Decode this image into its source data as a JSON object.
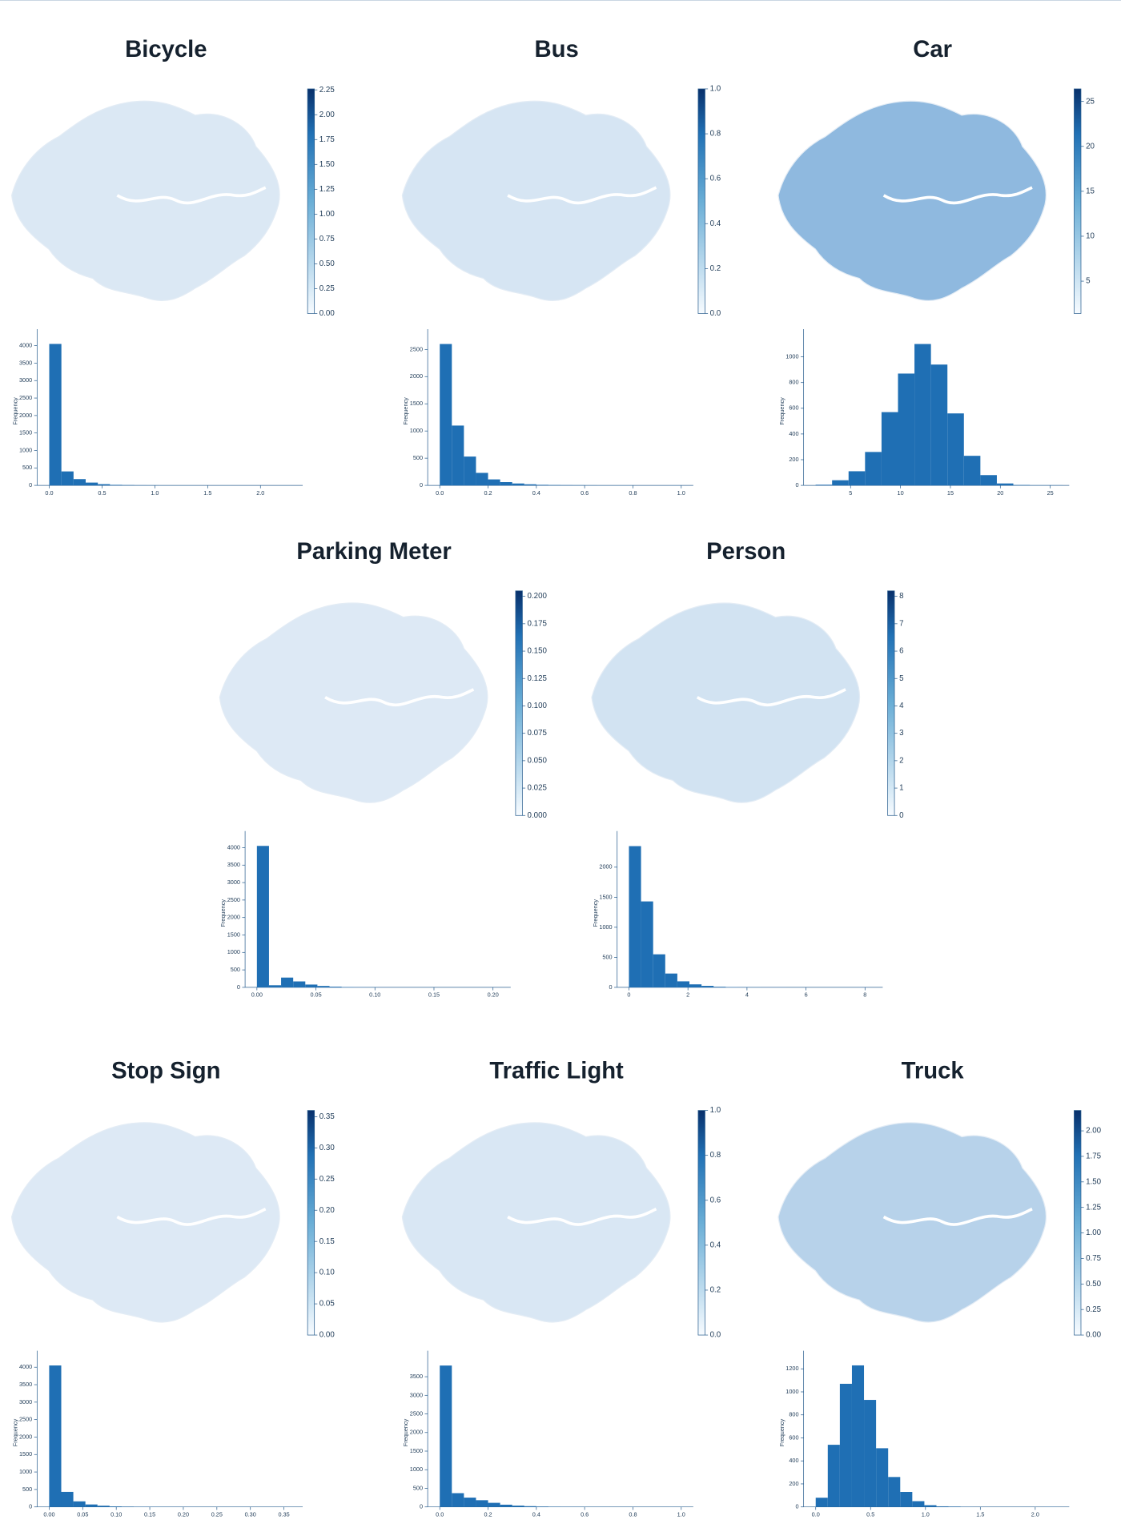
{
  "chart_data": [
    {
      "type": "histogram",
      "title": "Bicycle",
      "ylabel": "Frequency",
      "color": "#1f6fb4",
      "map_color": "#dbe8f4",
      "bins": [
        0,
        0.115,
        0.23,
        0.345,
        0.46,
        0.575,
        0.69,
        0.805,
        0.92,
        1.035,
        1.15,
        1.265,
        1.38,
        1.495,
        1.61,
        1.725,
        1.84,
        1.955,
        2.07,
        2.185,
        2.3
      ],
      "values": [
        4050,
        400,
        180,
        80,
        35,
        15,
        8,
        4,
        3,
        2,
        1,
        1,
        0,
        0,
        1,
        0,
        0,
        0,
        0,
        1
      ],
      "xlim": [
        -0.115,
        2.4
      ],
      "xticks": [
        {
          "value": 0,
          "label": "0.0"
        },
        0.5,
        {
          "value": 1,
          "label": "1.0"
        },
        1.5,
        {
          "value": 2,
          "label": "2.0"
        }
      ],
      "ylim": [
        0,
        4250
      ],
      "yticks": [
        0,
        500,
        1000,
        1500,
        2000,
        2500,
        3000,
        3500,
        4000
      ],
      "colorbar": {
        "lim": [
          0,
          2.26
        ],
        "ticks": [
          {
            "value": 0,
            "label": "0.00"
          },
          0.25,
          {
            "value": 0.5,
            "label": "0.50"
          },
          0.75,
          {
            "value": 1,
            "label": "1.00"
          },
          1.25,
          {
            "value": 1.5,
            "label": "1.50"
          },
          1.75,
          {
            "value": 2,
            "label": "2.00"
          },
          2.25
        ]
      }
    },
    {
      "type": "histogram",
      "title": "Bus",
      "ylabel": "Frequency",
      "color": "#1f6fb4",
      "map_color": "#d6e5f3",
      "bins": [
        0,
        0.05,
        0.1,
        0.15,
        0.2,
        0.25,
        0.3,
        0.35,
        0.4,
        0.45,
        0.5,
        0.55,
        0.6,
        0.65,
        0.7,
        0.75,
        0.8,
        0.85,
        0.9,
        0.95,
        1.0
      ],
      "values": [
        2600,
        1100,
        530,
        230,
        110,
        60,
        35,
        20,
        10,
        6,
        4,
        3,
        2,
        1,
        1,
        1,
        0,
        0,
        0,
        1
      ],
      "xlim": [
        -0.05,
        1.05
      ],
      "xticks": [
        {
          "value": 0,
          "label": "0.0"
        },
        0.2,
        0.4,
        0.6,
        0.8,
        {
          "value": 1,
          "label": "1.0"
        }
      ],
      "ylim": [
        0,
        2730
      ],
      "yticks": [
        0,
        500,
        1000,
        1500,
        2000,
        2500
      ],
      "colorbar": {
        "lim": [
          0,
          1.0
        ],
        "ticks": [
          {
            "value": 0,
            "label": "0.0"
          },
          0.2,
          0.4,
          0.6,
          0.8,
          {
            "value": 1,
            "label": "1.0"
          }
        ]
      }
    },
    {
      "type": "histogram",
      "title": "Car",
      "ylabel": "Frequency",
      "color": "#1f6fb4",
      "map_color": "#8fb9df",
      "bins": [
        1.5,
        3.15,
        4.8,
        6.45,
        8.1,
        9.75,
        11.4,
        13.05,
        14.7,
        16.35,
        18,
        19.65,
        21.3,
        22.95,
        24.6,
        26.25
      ],
      "values": [
        5,
        40,
        110,
        260,
        570,
        870,
        1100,
        940,
        560,
        230,
        80,
        15,
        3,
        1,
        1
      ],
      "xlim": [
        0.3,
        26.9
      ],
      "xticks": [
        5,
        10,
        15,
        20,
        25
      ],
      "ylim": [
        0,
        1155
      ],
      "yticks": [
        0,
        200,
        400,
        600,
        800,
        1000
      ],
      "colorbar": {
        "lim": [
          1.4,
          26.4
        ],
        "ticks": [
          5,
          10,
          15,
          20,
          25
        ]
      }
    },
    {
      "type": "histogram",
      "title": "Parking Meter",
      "ylabel": "Frequency",
      "color": "#1f6fb4",
      "map_color": "#dde9f5",
      "bins": [
        0,
        0.01025,
        0.0205,
        0.03075,
        0.041,
        0.05125,
        0.0615,
        0.07175,
        0.082,
        0.09225,
        0.1025,
        0.11275,
        0.123,
        0.13325,
        0.1435,
        0.15375,
        0.164,
        0.17425,
        0.1845,
        0.19475,
        0.205
      ],
      "values": [
        4050,
        60,
        280,
        170,
        80,
        40,
        20,
        10,
        5,
        3,
        2,
        1,
        1,
        0,
        0,
        0,
        0,
        0,
        0,
        1
      ],
      "xlim": [
        -0.01,
        0.215
      ],
      "xticks": [
        {
          "value": 0,
          "label": "0.00"
        },
        0.05,
        {
          "value": 0.1,
          "label": "0.10"
        },
        0.15,
        {
          "value": 0.2,
          "label": "0.20"
        }
      ],
      "ylim": [
        0,
        4250
      ],
      "yticks": [
        0,
        500,
        1000,
        1500,
        2000,
        2500,
        3000,
        3500,
        4000
      ],
      "colorbar": {
        "lim": [
          0,
          0.205
        ],
        "ticks": [
          {
            "value": 0,
            "label": "0.000"
          },
          0.025,
          {
            "value": 0.05,
            "label": "0.050"
          },
          0.075,
          {
            "value": 0.1,
            "label": "0.100"
          },
          0.125,
          {
            "value": 0.15,
            "label": "0.150"
          },
          0.175,
          {
            "value": 0.2,
            "label": "0.200"
          }
        ]
      }
    },
    {
      "type": "histogram",
      "title": "Person",
      "ylabel": "Frequency",
      "color": "#1f6fb4",
      "map_color": "#d2e3f2",
      "bins": [
        0,
        0.41,
        0.82,
        1.23,
        1.64,
        2.05,
        2.46,
        2.87,
        3.28,
        3.69,
        4.1,
        4.51,
        4.92,
        5.33,
        5.74,
        6.15,
        6.56,
        6.97,
        7.38,
        7.79,
        8.2
      ],
      "values": [
        2350,
        1430,
        550,
        230,
        100,
        50,
        25,
        10,
        5,
        3,
        2,
        1,
        1,
        0,
        0,
        0,
        0,
        0,
        0,
        1
      ],
      "xlim": [
        -0.4,
        8.6
      ],
      "xticks": [
        0,
        2,
        4,
        6,
        8
      ],
      "ylim": [
        0,
        2470
      ],
      "yticks": [
        0,
        500,
        1000,
        1500,
        2000
      ],
      "colorbar": {
        "lim": [
          0,
          8.2
        ],
        "ticks": [
          0,
          1,
          2,
          3,
          4,
          5,
          6,
          7,
          8
        ]
      }
    },
    {
      "type": "histogram",
      "title": "Stop Sign",
      "ylabel": "Frequency",
      "color": "#1f6fb4",
      "map_color": "#dde9f5",
      "bins": [
        0,
        0.018,
        0.036,
        0.054,
        0.072,
        0.09,
        0.108,
        0.126,
        0.144,
        0.162,
        0.18,
        0.198,
        0.216,
        0.234,
        0.252,
        0.27,
        0.288,
        0.306,
        0.324,
        0.342,
        0.36
      ],
      "values": [
        4050,
        430,
        160,
        70,
        35,
        15,
        8,
        4,
        3,
        2,
        1,
        1,
        0,
        0,
        0,
        0,
        0,
        0,
        0,
        1
      ],
      "xlim": [
        -0.018,
        0.378
      ],
      "xticks": [
        {
          "value": 0,
          "label": "0.00"
        },
        0.05,
        {
          "value": 0.1,
          "label": "0.10"
        },
        0.15,
        {
          "value": 0.2,
          "label": "0.20"
        },
        0.25,
        {
          "value": 0.3,
          "label": "0.30"
        },
        0.35
      ],
      "ylim": [
        0,
        4250
      ],
      "yticks": [
        0,
        500,
        1000,
        1500,
        2000,
        2500,
        3000,
        3500,
        4000
      ],
      "colorbar": {
        "lim": [
          0,
          0.36
        ],
        "ticks": [
          {
            "value": 0,
            "label": "0.00"
          },
          0.05,
          {
            "value": 0.1,
            "label": "0.10"
          },
          0.15,
          {
            "value": 0.2,
            "label": "0.20"
          },
          0.25,
          {
            "value": 0.3,
            "label": "0.30"
          },
          0.35
        ]
      }
    },
    {
      "type": "histogram",
      "title": "Traffic Light",
      "ylabel": "Frequency",
      "color": "#1f6fb4",
      "map_color": "#d9e7f4",
      "bins": [
        0,
        0.05,
        0.1,
        0.15,
        0.2,
        0.25,
        0.3,
        0.35,
        0.4,
        0.45,
        0.5,
        0.55,
        0.6,
        0.65,
        0.7,
        0.75,
        0.8,
        0.85,
        0.9,
        0.95,
        1.0
      ],
      "values": [
        3800,
        370,
        250,
        180,
        110,
        60,
        35,
        20,
        10,
        5,
        3,
        2,
        1,
        1,
        0,
        0,
        0,
        0,
        0,
        1
      ],
      "xlim": [
        -0.05,
        1.05
      ],
      "xticks": [
        {
          "value": 0,
          "label": "0.0"
        },
        0.2,
        0.4,
        0.6,
        0.8,
        {
          "value": 1,
          "label": "1.0"
        }
      ],
      "ylim": [
        0,
        3990
      ],
      "yticks": [
        0,
        500,
        1000,
        1500,
        2000,
        2500,
        3000,
        3500
      ],
      "colorbar": {
        "lim": [
          0,
          1.0
        ],
        "ticks": [
          {
            "value": 0,
            "label": "0.0"
          },
          0.2,
          0.4,
          0.6,
          0.8,
          {
            "value": 1,
            "label": "1.0"
          }
        ]
      }
    },
    {
      "type": "histogram",
      "title": "Truck",
      "ylabel": "Frequency",
      "color": "#1f6fb4",
      "map_color": "#b7d2ea",
      "bins": [
        0,
        0.11,
        0.22,
        0.33,
        0.44,
        0.55,
        0.66,
        0.77,
        0.88,
        0.99,
        1.1,
        1.21,
        1.32,
        1.43,
        1.54,
        1.65,
        1.76,
        1.87,
        1.98,
        2.09,
        2.2
      ],
      "values": [
        80,
        540,
        1070,
        1230,
        930,
        510,
        260,
        130,
        50,
        15,
        5,
        3,
        1,
        0,
        0,
        0,
        0,
        0,
        0,
        1
      ],
      "xlim": [
        -0.11,
        2.31
      ],
      "xticks": [
        {
          "value": 0,
          "label": "0.0"
        },
        0.5,
        {
          "value": 1,
          "label": "1.0"
        },
        1.5,
        {
          "value": 2,
          "label": "2.0"
        }
      ],
      "ylim": [
        0,
        1290
      ],
      "yticks": [
        0,
        200,
        400,
        600,
        800,
        1000,
        1200
      ],
      "colorbar": {
        "lim": [
          0,
          2.2
        ],
        "ticks": [
          {
            "value": 0,
            "label": "0.00"
          },
          0.25,
          {
            "value": 0.5,
            "label": "0.50"
          },
          0.75,
          {
            "value": 1,
            "label": "1.00"
          },
          1.25,
          {
            "value": 1.5,
            "label": "1.50"
          },
          1.75,
          {
            "value": 2,
            "label": "2.00"
          }
        ]
      }
    }
  ]
}
